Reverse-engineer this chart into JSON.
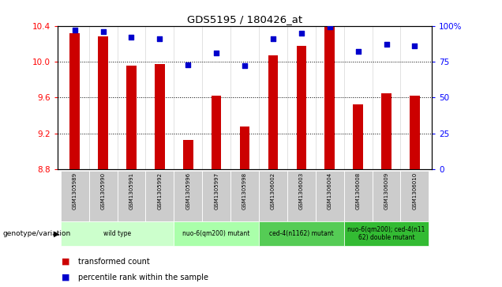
{
  "title": "GDS5195 / 180426_at",
  "samples": [
    "GSM1305989",
    "GSM1305990",
    "GSM1305991",
    "GSM1305992",
    "GSM1305996",
    "GSM1305997",
    "GSM1305998",
    "GSM1306002",
    "GSM1306003",
    "GSM1306004",
    "GSM1306008",
    "GSM1306009",
    "GSM1306010"
  ],
  "bar_values": [
    10.32,
    10.28,
    9.96,
    9.97,
    9.13,
    9.62,
    9.28,
    10.07,
    10.18,
    10.4,
    9.52,
    9.65,
    9.62
  ],
  "dot_values": [
    97,
    96,
    92,
    91,
    73,
    81,
    72,
    91,
    95,
    99,
    82,
    87,
    86
  ],
  "ylim": [
    8.8,
    10.4
  ],
  "yticks": [
    8.8,
    9.2,
    9.6,
    10.0,
    10.4
  ],
  "right_ylim": [
    0,
    100
  ],
  "right_yticks": [
    0,
    25,
    50,
    75,
    100
  ],
  "bar_color": "#cc0000",
  "dot_color": "#0000cc",
  "groups_info": [
    {
      "label": "wild type",
      "start": 0,
      "end": 3,
      "color": "#ccffcc"
    },
    {
      "label": "nuo-6(qm200) mutant",
      "start": 4,
      "end": 6,
      "color": "#aaffaa"
    },
    {
      "label": "ced-4(n1162) mutant",
      "start": 7,
      "end": 9,
      "color": "#55cc55"
    },
    {
      "label": "nuo-6(qm200); ced-4(n11\n62) double mutant",
      "start": 10,
      "end": 12,
      "color": "#33bb33"
    }
  ],
  "header_bg": "#cccccc",
  "bar_width": 0.35
}
